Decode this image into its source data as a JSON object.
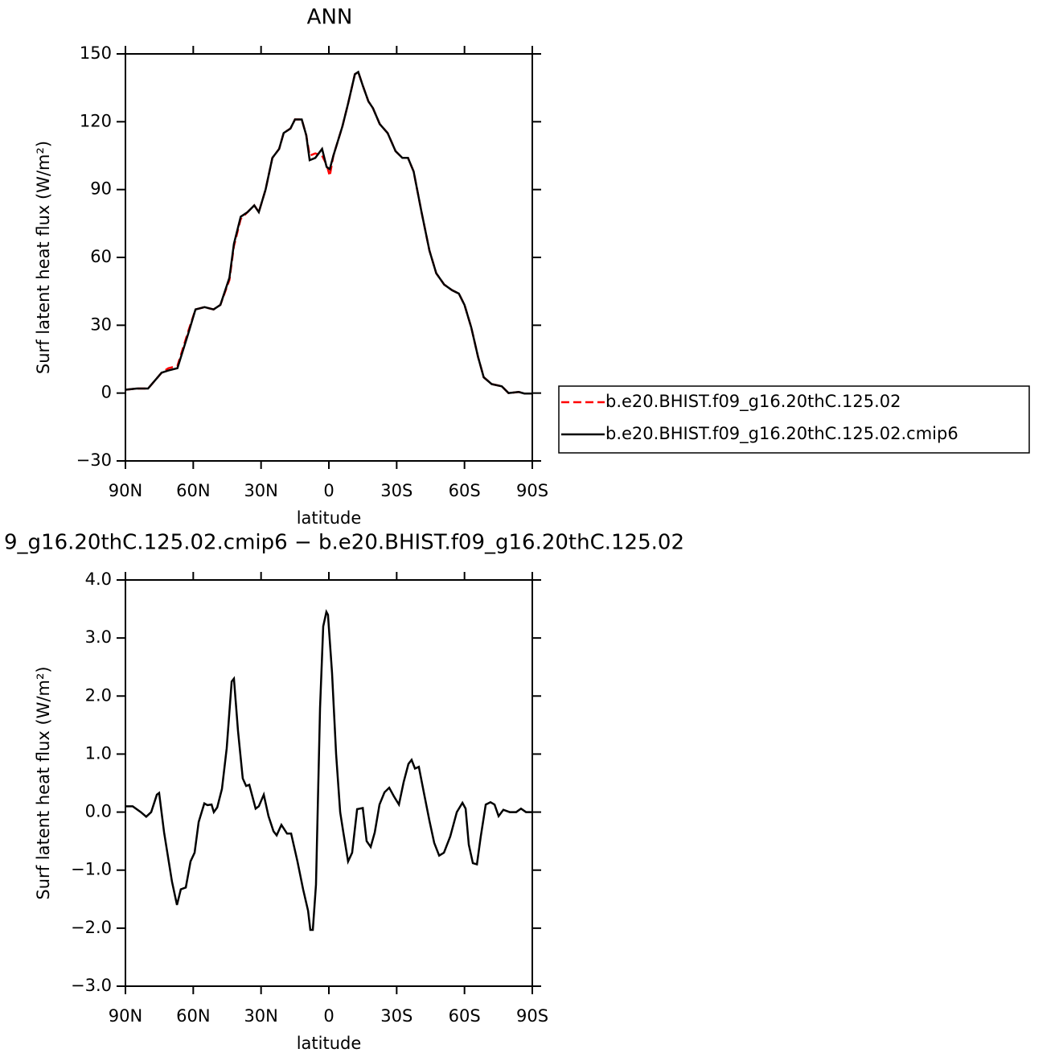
{
  "chart_data": [
    {
      "type": "line",
      "title": "ANN",
      "x_label": "latitude",
      "y_label": "Surf latent heat flux (W/m²)",
      "x": [
        90,
        85,
        80,
        74,
        71,
        67,
        62,
        59,
        55,
        51,
        48,
        44,
        42,
        39,
        36,
        33,
        31,
        28,
        25,
        22,
        20,
        17,
        15,
        12,
        10,
        8.5,
        6,
        3,
        1,
        -0.4,
        -2,
        -6,
        -8.5,
        -11.5,
        -13,
        -15,
        -17.5,
        -19.5,
        -22.5,
        -26,
        -29.5,
        -32.5,
        -35,
        -37.5,
        -41,
        -44.5,
        -47.5,
        -51,
        -54.5,
        -57.5,
        -60,
        -63,
        -66,
        -68.5,
        -72,
        -76.5,
        -79.5,
        -84,
        -86.5,
        -90
      ],
      "series": [
        {
          "name": "b.e20.BHIST.f09_g16.20thC.125.02",
          "color": "#ff0000",
          "style": "dashed",
          "values": [
            1.5,
            2,
            2,
            9,
            11,
            12,
            28,
            37,
            38,
            37,
            39,
            50,
            65,
            77,
            80,
            83,
            80,
            90,
            104,
            108,
            115,
            117,
            121,
            121,
            114,
            105,
            106,
            105,
            101,
            96,
            105,
            118,
            128,
            141,
            142,
            136,
            129,
            126,
            119,
            115,
            107,
            104,
            104,
            98,
            80,
            63,
            53,
            48,
            45.5,
            44,
            39,
            29,
            16,
            7,
            4,
            3,
            0,
            0.5,
            -0.2,
            -0.2
          ]
        },
        {
          "name": "b.e20.BHIST.f09_g16.20thC.125.02.cmip6",
          "color": "#000000",
          "style": "solid",
          "values": [
            1.5,
            2,
            2,
            9,
            10,
            11,
            27,
            37,
            38,
            37,
            39,
            51,
            66,
            78,
            80,
            83,
            80,
            90,
            104,
            108,
            115,
            117,
            121,
            121,
            114,
            103,
            104,
            108,
            100,
            99,
            105,
            118,
            128,
            141,
            142,
            136,
            129,
            126,
            119,
            115,
            107,
            104,
            104,
            98,
            80,
            63,
            53,
            48,
            45.5,
            44,
            39,
            29,
            16,
            7,
            4,
            3,
            0,
            0.5,
            -0.2,
            -0.2
          ]
        }
      ],
      "xlim": [
        90,
        -90
      ],
      "xticks": [
        {
          "value": 90,
          "label": "90N"
        },
        {
          "value": 60,
          "label": "60N"
        },
        {
          "value": 30,
          "label": "30N"
        },
        0,
        {
          "value": -30,
          "label": "30S"
        },
        {
          "value": -60,
          "label": "60S"
        },
        {
          "value": -90,
          "label": "90S"
        }
      ],
      "ylim": [
        -30,
        150
      ],
      "yticks": [
        {
          "value": -30,
          "label": "−30"
        },
        0,
        30,
        60,
        90,
        120,
        150
      ],
      "legend": "right"
    },
    {
      "type": "line",
      "title": "9_g16.20thC.125.02.cmip6 − b.e20.BHIST.f09_g16.20thC.125.02",
      "x_label": "latitude",
      "y_label": "Surf latent heat flux (W/m²)",
      "x": [
        90,
        86.8,
        83.2,
        80.8,
        78.6,
        76.1,
        75.1,
        72.9,
        69.4,
        67.2,
        65.5,
        63.3,
        61.2,
        59.4,
        57.6,
        55.1,
        53.7,
        51.9,
        50.9,
        49.4,
        47.3,
        45.2,
        43,
        42,
        40.2,
        38.1,
        36.6,
        35.2,
        32.4,
        31,
        28.8,
        26.7,
        24.5,
        23.1,
        21,
        18.5,
        16.7,
        13.9,
        11.4,
        9.2,
        8.2,
        7.1,
        5.7,
        3.9,
        2.5,
        1.1,
        0.4,
        -1.4,
        -3.2,
        -5,
        -6.4,
        -8.5,
        -10.3,
        -12.5,
        -15,
        -16.7,
        -18.5,
        -20.3,
        -22.4,
        -24.6,
        -26.7,
        -28.8,
        -31,
        -33.1,
        -35.2,
        -36.6,
        -38.1,
        -39.8,
        -42,
        -44.5,
        -46.6,
        -48.8,
        -50.9,
        -53.7,
        -56.6,
        -59.1,
        -60.5,
        -61.9,
        -63.7,
        -65.5,
        -67.2,
        -69.4,
        -71.5,
        -73.3,
        -75.1,
        -77.2,
        -80,
        -82.9,
        -85,
        -87.2,
        -90
      ],
      "series": [
        {
          "color": "#000000",
          "style": "solid",
          "values": [
            0.1,
            0.1,
            0,
            -0.08,
            0,
            0.3,
            0.33,
            -0.35,
            -1.2,
            -1.6,
            -1.33,
            -1.3,
            -0.85,
            -0.7,
            -0.17,
            0.15,
            0.12,
            0.13,
            0,
            0.08,
            0.4,
            1.1,
            2.25,
            2.3,
            1.4,
            0.58,
            0.45,
            0.47,
            0.06,
            0.1,
            0.3,
            -0.07,
            -0.33,
            -0.4,
            -0.22,
            -0.37,
            -0.37,
            -0.85,
            -1.33,
            -1.7,
            -2.03,
            -2.03,
            -1.25,
            1.8,
            3.2,
            3.45,
            3.4,
            2.4,
            1.0,
            0,
            -0.35,
            -0.85,
            -0.7,
            0.05,
            0.07,
            -0.5,
            -0.6,
            -0.35,
            0.13,
            0.34,
            0.42,
            0.27,
            0.13,
            0.52,
            0.83,
            0.9,
            0.75,
            0.78,
            0.34,
            -0.15,
            -0.53,
            -0.75,
            -0.7,
            -0.42,
            0,
            0.16,
            0.06,
            -0.56,
            -0.88,
            -0.9,
            -0.42,
            0.13,
            0.17,
            0.13,
            -0.07,
            0.04,
            0,
            0,
            0.06,
            0,
            0
          ]
        }
      ],
      "xlim": [
        90,
        -90
      ],
      "xticks": [
        {
          "value": 90,
          "label": "90N"
        },
        {
          "value": 60,
          "label": "60N"
        },
        {
          "value": 30,
          "label": "30N"
        },
        0,
        {
          "value": -30,
          "label": "30S"
        },
        {
          "value": -60,
          "label": "60S"
        },
        {
          "value": -90,
          "label": "90S"
        }
      ],
      "ylim": [
        -3,
        4
      ],
      "yticks": [
        {
          "value": -3,
          "label": "−3.0"
        },
        {
          "value": -2,
          "label": "−2.0"
        },
        {
          "value": -1,
          "label": "−1.0"
        },
        {
          "value": 0,
          "label": "0.0"
        },
        {
          "value": 1,
          "label": "1.0"
        },
        {
          "value": 2,
          "label": "2.0"
        },
        {
          "value": 3,
          "label": "3.0"
        },
        {
          "value": 4,
          "label": "4.0"
        }
      ]
    }
  ]
}
